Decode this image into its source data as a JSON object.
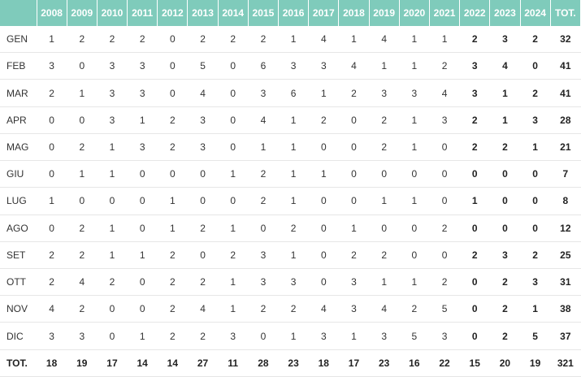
{
  "table": {
    "header": [
      "2008",
      "2009",
      "2010",
      "2011",
      "2012",
      "2013",
      "2014",
      "2015",
      "2016",
      "2017",
      "2018",
      "2019",
      "2020",
      "2021",
      "2022",
      "2023",
      "2024",
      "TOT."
    ],
    "rows": [
      [
        "GEN",
        1,
        2,
        2,
        2,
        0,
        2,
        2,
        2,
        1,
        4,
        1,
        4,
        1,
        1,
        2,
        3,
        2,
        32
      ],
      [
        "FEB",
        3,
        0,
        3,
        3,
        0,
        5,
        0,
        6,
        3,
        3,
        4,
        1,
        1,
        2,
        3,
        4,
        0,
        41
      ],
      [
        "MAR",
        2,
        1,
        3,
        3,
        0,
        4,
        0,
        3,
        6,
        1,
        2,
        3,
        3,
        4,
        3,
        1,
        2,
        41
      ],
      [
        "APR",
        0,
        0,
        3,
        1,
        2,
        3,
        0,
        4,
        1,
        2,
        0,
        2,
        1,
        3,
        2,
        1,
        3,
        28
      ],
      [
        "MAG",
        0,
        2,
        1,
        3,
        2,
        3,
        0,
        1,
        1,
        0,
        0,
        2,
        1,
        0,
        2,
        2,
        1,
        21
      ],
      [
        "GIU",
        0,
        1,
        1,
        0,
        0,
        0,
        1,
        2,
        1,
        1,
        0,
        0,
        0,
        0,
        0,
        0,
        0,
        7
      ],
      [
        "LUG",
        1,
        0,
        0,
        0,
        1,
        0,
        0,
        2,
        1,
        0,
        0,
        1,
        1,
        0,
        1,
        0,
        0,
        8
      ],
      [
        "AGO",
        0,
        2,
        1,
        0,
        1,
        2,
        1,
        0,
        2,
        0,
        1,
        0,
        0,
        2,
        0,
        0,
        0,
        12
      ],
      [
        "SET",
        2,
        2,
        1,
        1,
        2,
        0,
        2,
        3,
        1,
        0,
        2,
        2,
        0,
        0,
        2,
        3,
        2,
        25
      ],
      [
        "OTT",
        2,
        4,
        2,
        0,
        2,
        2,
        1,
        3,
        3,
        0,
        3,
        1,
        1,
        2,
        0,
        2,
        3,
        31
      ],
      [
        "NOV",
        4,
        2,
        0,
        0,
        2,
        4,
        1,
        2,
        2,
        4,
        3,
        4,
        2,
        5,
        0,
        2,
        1,
        38
      ],
      [
        "DIC",
        3,
        3,
        0,
        1,
        2,
        2,
        3,
        0,
        1,
        3,
        1,
        3,
        5,
        3,
        0,
        2,
        5,
        37
      ],
      [
        "TOT.",
        18,
        19,
        17,
        14,
        14,
        27,
        11,
        28,
        23,
        18,
        17,
        23,
        16,
        22,
        15,
        20,
        19,
        321
      ]
    ]
  }
}
